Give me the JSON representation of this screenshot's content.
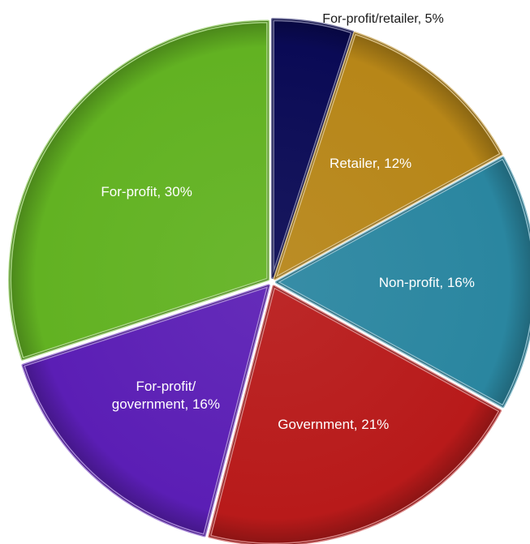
{
  "chart_data": {
    "type": "pie",
    "slices": [
      {
        "label": "For-profit/retailer",
        "value": 5,
        "text": "For-profit/retailer, 5%",
        "color": "#0a0a55"
      },
      {
        "label": "Retailer",
        "value": 12,
        "text": "Retailer, 12%",
        "color": "#b78618"
      },
      {
        "label": "Non-profit",
        "value": 16,
        "text": "Non-profit, 16%",
        "color": "#2a86a0"
      },
      {
        "label": "Government",
        "value": 21,
        "text": "Government, 21%",
        "color": "#b81a1a"
      },
      {
        "label": "For-profit/ government",
        "value": 16,
        "text": "For-profit/\ngovernment, 16%",
        "color": "#5b1eb5"
      },
      {
        "label": "For-profit",
        "value": 30,
        "text": "For-profit, 30%",
        "color": "#62b222"
      }
    ],
    "start_angle": "12 o'clock",
    "direction": "clockwise",
    "legend": "none",
    "style": "exploded bevelled slices, labels inside except first slice label outside top"
  }
}
